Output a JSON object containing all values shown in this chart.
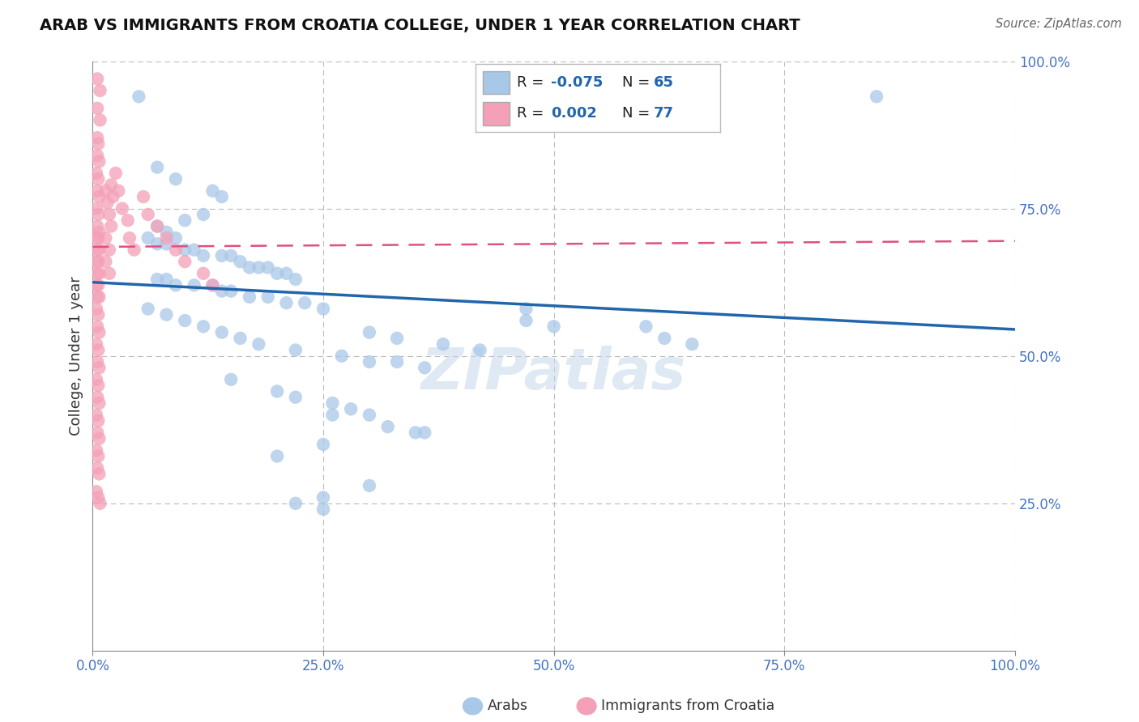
{
  "title": "ARAB VS IMMIGRANTS FROM CROATIA COLLEGE, UNDER 1 YEAR CORRELATION CHART",
  "source": "Source: ZipAtlas.com",
  "ylabel": "College, Under 1 year",
  "xlim": [
    0.0,
    1.0
  ],
  "ylim": [
    0.0,
    1.0
  ],
  "xtick_labels": [
    "0.0%",
    "",
    "25.0%",
    "",
    "50.0%",
    "",
    "75.0%",
    "",
    "100.0%"
  ],
  "xtick_vals": [
    0.0,
    0.125,
    0.25,
    0.375,
    0.5,
    0.625,
    0.75,
    0.875,
    1.0
  ],
  "ytick_labels_right": [
    "100.0%",
    "75.0%",
    "50.0%",
    "25.0%"
  ],
  "ytick_vals": [
    1.0,
    0.75,
    0.5,
    0.25
  ],
  "grid_vals": [
    0.25,
    0.5,
    0.75,
    1.0
  ],
  "legend_R1": "-0.075",
  "legend_N1": "65",
  "legend_R2": "0.002",
  "legend_N2": "77",
  "blue_color": "#a8c8e8",
  "pink_color": "#f4a0b8",
  "trend_blue": "#2166ac",
  "trend_pink": "#e05080",
  "tick_color": "#4472c4",
  "watermark": "ZIPatlas",
  "blue_trend_start_y": 0.625,
  "blue_trend_end_y": 0.545,
  "pink_trend_start_y": 0.685,
  "pink_trend_end_y": 0.695,
  "blue_dots": [
    [
      0.05,
      0.94
    ],
    [
      0.85,
      0.94
    ],
    [
      0.07,
      0.82
    ],
    [
      0.09,
      0.8
    ],
    [
      0.13,
      0.78
    ],
    [
      0.14,
      0.77
    ],
    [
      0.12,
      0.74
    ],
    [
      0.1,
      0.73
    ],
    [
      0.07,
      0.72
    ],
    [
      0.08,
      0.71
    ],
    [
      0.09,
      0.7
    ],
    [
      0.06,
      0.7
    ],
    [
      0.07,
      0.69
    ],
    [
      0.08,
      0.69
    ],
    [
      0.1,
      0.68
    ],
    [
      0.11,
      0.68
    ],
    [
      0.12,
      0.67
    ],
    [
      0.14,
      0.67
    ],
    [
      0.15,
      0.67
    ],
    [
      0.16,
      0.66
    ],
    [
      0.17,
      0.65
    ],
    [
      0.18,
      0.65
    ],
    [
      0.19,
      0.65
    ],
    [
      0.2,
      0.64
    ],
    [
      0.21,
      0.64
    ],
    [
      0.22,
      0.63
    ],
    [
      0.07,
      0.63
    ],
    [
      0.08,
      0.63
    ],
    [
      0.09,
      0.62
    ],
    [
      0.11,
      0.62
    ],
    [
      0.13,
      0.62
    ],
    [
      0.14,
      0.61
    ],
    [
      0.15,
      0.61
    ],
    [
      0.17,
      0.6
    ],
    [
      0.19,
      0.6
    ],
    [
      0.21,
      0.59
    ],
    [
      0.23,
      0.59
    ],
    [
      0.25,
      0.58
    ],
    [
      0.06,
      0.58
    ],
    [
      0.08,
      0.57
    ],
    [
      0.1,
      0.56
    ],
    [
      0.12,
      0.55
    ],
    [
      0.14,
      0.54
    ],
    [
      0.16,
      0.53
    ],
    [
      0.18,
      0.52
    ],
    [
      0.22,
      0.51
    ],
    [
      0.3,
      0.54
    ],
    [
      0.33,
      0.53
    ],
    [
      0.27,
      0.5
    ],
    [
      0.3,
      0.49
    ],
    [
      0.33,
      0.49
    ],
    [
      0.36,
      0.48
    ],
    [
      0.38,
      0.52
    ],
    [
      0.42,
      0.51
    ],
    [
      0.47,
      0.58
    ],
    [
      0.47,
      0.56
    ],
    [
      0.5,
      0.55
    ],
    [
      0.6,
      0.55
    ],
    [
      0.62,
      0.53
    ],
    [
      0.65,
      0.52
    ],
    [
      0.15,
      0.46
    ],
    [
      0.2,
      0.44
    ],
    [
      0.22,
      0.43
    ],
    [
      0.26,
      0.42
    ],
    [
      0.26,
      0.4
    ],
    [
      0.28,
      0.41
    ],
    [
      0.3,
      0.4
    ],
    [
      0.32,
      0.38
    ],
    [
      0.35,
      0.37
    ],
    [
      0.36,
      0.37
    ],
    [
      0.25,
      0.35
    ],
    [
      0.2,
      0.33
    ],
    [
      0.22,
      0.25
    ],
    [
      0.25,
      0.26
    ],
    [
      0.25,
      0.24
    ],
    [
      0.3,
      0.28
    ]
  ],
  "pink_dots": [
    [
      0.005,
      0.97
    ],
    [
      0.008,
      0.95
    ],
    [
      0.005,
      0.92
    ],
    [
      0.008,
      0.9
    ],
    [
      0.005,
      0.87
    ],
    [
      0.006,
      0.86
    ],
    [
      0.005,
      0.84
    ],
    [
      0.007,
      0.83
    ],
    [
      0.004,
      0.81
    ],
    [
      0.006,
      0.8
    ],
    [
      0.005,
      0.78
    ],
    [
      0.007,
      0.77
    ],
    [
      0.004,
      0.75
    ],
    [
      0.006,
      0.74
    ],
    [
      0.005,
      0.72
    ],
    [
      0.007,
      0.71
    ],
    [
      0.004,
      0.7
    ],
    [
      0.006,
      0.7
    ],
    [
      0.005,
      0.68
    ],
    [
      0.007,
      0.68
    ],
    [
      0.004,
      0.66
    ],
    [
      0.006,
      0.66
    ],
    [
      0.005,
      0.64
    ],
    [
      0.007,
      0.64
    ],
    [
      0.004,
      0.62
    ],
    [
      0.006,
      0.62
    ],
    [
      0.005,
      0.6
    ],
    [
      0.007,
      0.6
    ],
    [
      0.004,
      0.58
    ],
    [
      0.006,
      0.57
    ],
    [
      0.005,
      0.55
    ],
    [
      0.007,
      0.54
    ],
    [
      0.004,
      0.52
    ],
    [
      0.006,
      0.51
    ],
    [
      0.005,
      0.49
    ],
    [
      0.007,
      0.48
    ],
    [
      0.004,
      0.46
    ],
    [
      0.006,
      0.45
    ],
    [
      0.005,
      0.43
    ],
    [
      0.007,
      0.42
    ],
    [
      0.004,
      0.4
    ],
    [
      0.006,
      0.39
    ],
    [
      0.005,
      0.37
    ],
    [
      0.007,
      0.36
    ],
    [
      0.004,
      0.34
    ],
    [
      0.006,
      0.33
    ],
    [
      0.005,
      0.31
    ],
    [
      0.007,
      0.3
    ],
    [
      0.014,
      0.78
    ],
    [
      0.016,
      0.76
    ],
    [
      0.018,
      0.74
    ],
    [
      0.02,
      0.72
    ],
    [
      0.014,
      0.7
    ],
    [
      0.018,
      0.68
    ],
    [
      0.014,
      0.66
    ],
    [
      0.018,
      0.64
    ],
    [
      0.02,
      0.79
    ],
    [
      0.022,
      0.77
    ],
    [
      0.025,
      0.81
    ],
    [
      0.028,
      0.78
    ],
    [
      0.032,
      0.75
    ],
    [
      0.038,
      0.73
    ],
    [
      0.04,
      0.7
    ],
    [
      0.045,
      0.68
    ],
    [
      0.055,
      0.77
    ],
    [
      0.06,
      0.74
    ],
    [
      0.07,
      0.72
    ],
    [
      0.08,
      0.7
    ],
    [
      0.09,
      0.68
    ],
    [
      0.1,
      0.66
    ],
    [
      0.12,
      0.64
    ],
    [
      0.13,
      0.62
    ],
    [
      0.004,
      0.27
    ],
    [
      0.006,
      0.26
    ],
    [
      0.008,
      0.25
    ]
  ]
}
